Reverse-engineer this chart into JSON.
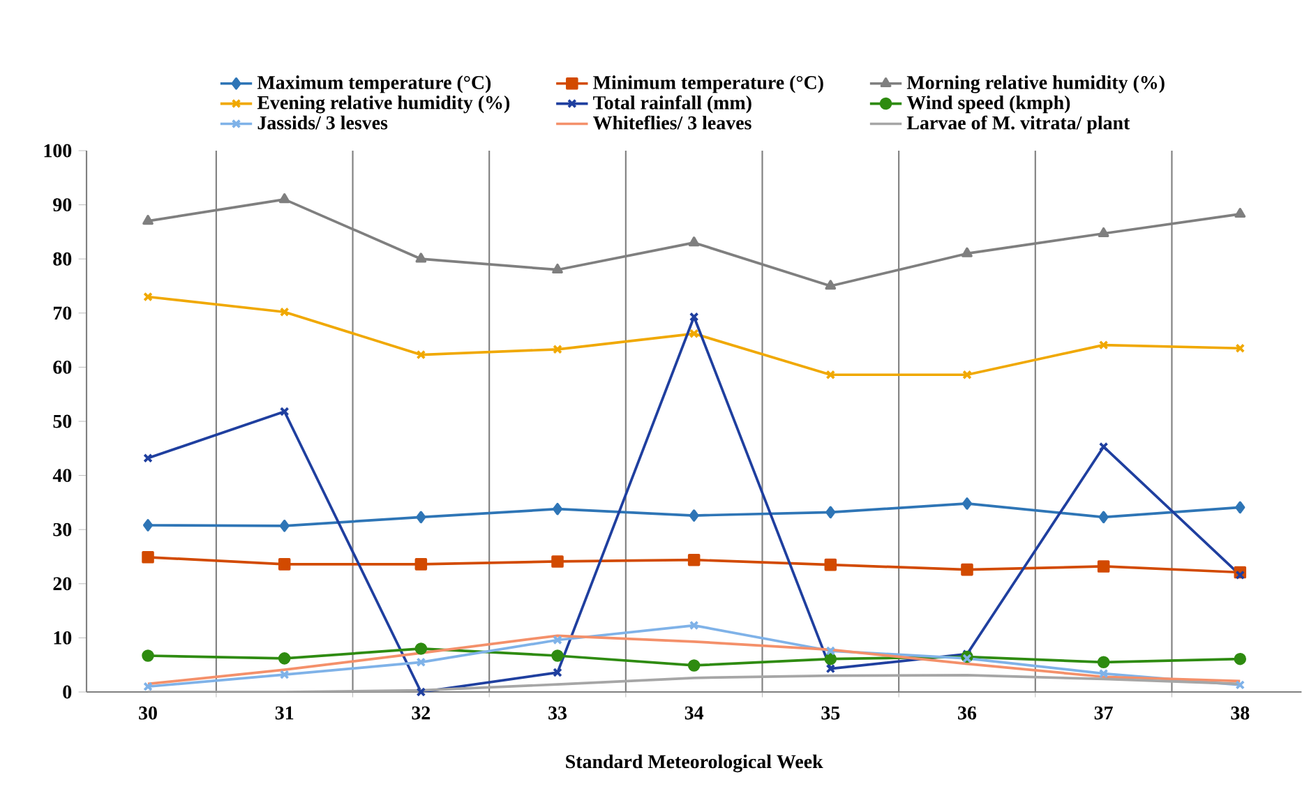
{
  "chart_data": {
    "type": "line",
    "xlabel": "Standard Meteorological Week",
    "categories": [
      "30",
      "31",
      "32",
      "33",
      "34",
      "35",
      "36",
      "37",
      "38"
    ],
    "ylim": [
      0,
      100
    ],
    "yticks": [
      0,
      10,
      20,
      30,
      40,
      50,
      60,
      70,
      80,
      90,
      100
    ],
    "grid": "x",
    "legend": "top",
    "line_style": "solid",
    "series": [
      {
        "name": "Maximum temperature (°C)",
        "color": "#2e75b6",
        "marker": "diamond",
        "values": [
          30.8,
          30.7,
          32.3,
          33.8,
          32.6,
          33.2,
          34.8,
          32.3,
          34.1
        ]
      },
      {
        "name": "Minimum temperature (°C)",
        "color": "#d24a00",
        "marker": "square",
        "values": [
          24.9,
          23.6,
          23.6,
          24.1,
          24.4,
          23.5,
          22.6,
          23.2,
          22.1
        ]
      },
      {
        "name": "Morning relative humidity (%)",
        "color": "#7f7f7f",
        "marker": "triangle",
        "values": [
          87,
          91,
          80,
          78,
          83,
          75,
          81,
          84.7,
          88.3
        ]
      },
      {
        "name": "Evening relative humidity (%)",
        "color": "#f0a800",
        "marker": "cross",
        "values": [
          73,
          70.2,
          62.3,
          63.3,
          66.2,
          58.6,
          58.6,
          64.1,
          63.5
        ]
      },
      {
        "name": "Total rainfall (mm)",
        "color": "#1f3f9f",
        "marker": "cross",
        "values": [
          43.2,
          51.8,
          0,
          3.6,
          69.3,
          4.3,
          7,
          45.3,
          21.6
        ]
      },
      {
        "name": "Wind speed (kmph)",
        "color": "#2e8b10",
        "marker": "circle",
        "values": [
          6.7,
          6.2,
          8,
          6.7,
          4.9,
          6.1,
          6.5,
          5.5,
          6.1
        ]
      },
      {
        "name": "Jassids/ 3 lesves",
        "color": "#7fb2e8",
        "marker": "cross",
        "values": [
          1,
          3.2,
          5.5,
          9.6,
          12.3,
          7.6,
          6.2,
          3.4,
          1.3
        ]
      },
      {
        "name": "Whiteflies/ 3 leaves",
        "color": "#f4906a",
        "marker": "none",
        "values": [
          1.5,
          4.1,
          7.2,
          10.4,
          9.3,
          7.8,
          5.2,
          2.8,
          2.0
        ]
      },
      {
        "name": "Larvae of M. vitrata/ plant",
        "color": "#a6a6a6",
        "marker": "none",
        "values": [
          0,
          0,
          0.3,
          1.4,
          2.6,
          3.0,
          3.1,
          2.4,
          1.5
        ]
      }
    ]
  }
}
